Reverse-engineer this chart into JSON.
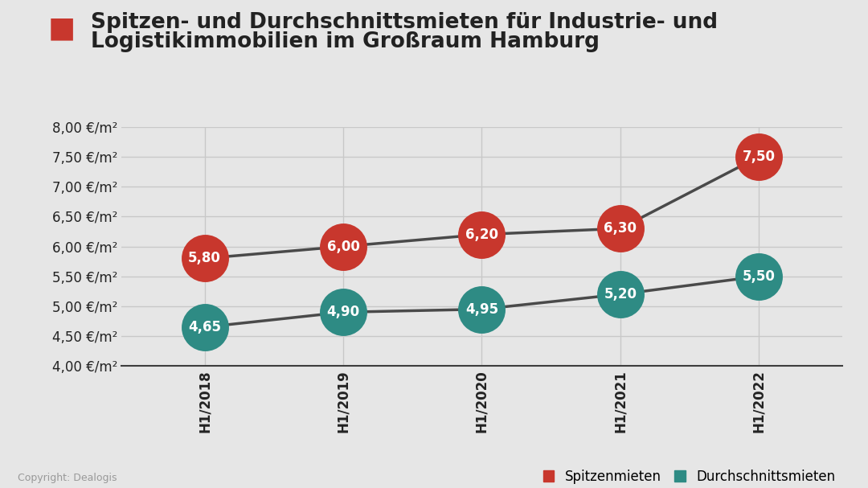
{
  "title_line1": "Spitzen- und Durchschnittsmieten für Industrie- und",
  "title_line2": "Logistikimmobilien im Großraum Hamburg",
  "title_icon_color": "#c8372d",
  "categories": [
    "H1/2018",
    "H1/2019",
    "H1/2020",
    "H1/2021",
    "H1/2022"
  ],
  "spitzenmieten": [
    5.8,
    6.0,
    6.2,
    6.3,
    7.5
  ],
  "durchschnittsmieten": [
    4.65,
    4.9,
    4.95,
    5.2,
    5.5
  ],
  "spitzenmieten_color": "#c8372d",
  "durchschnittsmieten_color": "#2e8b84",
  "line_color": "#4a4a4a",
  "ylim_min": 4.0,
  "ylim_max": 8.0,
  "ytick_step": 0.5,
  "background_color": "#e6e6e6",
  "plot_bg_color": "#e6e6e6",
  "grid_color": "#c8c8c8",
  "label_spitzenmieten": "Spitzenmieten",
  "label_durchschnittsmieten": "Durchschnittsmieten",
  "copyright_text": "Copyright: Dealogis",
  "font_color": "#222222",
  "title_fontsize": 19,
  "axis_fontsize": 12,
  "label_fontsize": 12,
  "annotation_fontsize": 12,
  "marker_scatter_size": 1800
}
